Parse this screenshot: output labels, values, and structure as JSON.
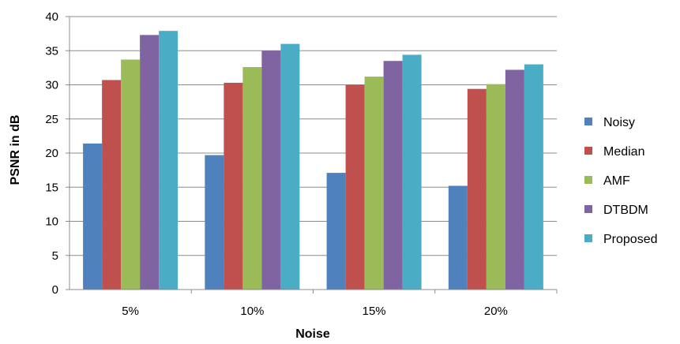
{
  "chart_data": {
    "type": "bar",
    "title": "",
    "xlabel": "Noise",
    "ylabel": "PSNR in dB",
    "categories": [
      "5%",
      "10%",
      "15%",
      "20%"
    ],
    "ylim": [
      0,
      40
    ],
    "yticks": [
      0,
      5,
      10,
      15,
      20,
      25,
      30,
      35,
      40
    ],
    "grid": true,
    "legend_position": "right",
    "series": [
      {
        "name": "Noisy",
        "color": "#4F81BD",
        "values": [
          21.4,
          19.7,
          17.1,
          15.2
        ]
      },
      {
        "name": "Median",
        "color": "#C0504D",
        "values": [
          30.7,
          30.3,
          30.0,
          29.4
        ]
      },
      {
        "name": "AMF",
        "color": "#9BBB59",
        "values": [
          33.7,
          32.6,
          31.2,
          30.1
        ]
      },
      {
        "name": "DTBDM",
        "color": "#8064A2",
        "values": [
          37.3,
          35.0,
          33.5,
          32.2
        ]
      },
      {
        "name": "Proposed",
        "color": "#4BACC6",
        "values": [
          37.9,
          36.0,
          34.4,
          33.0
        ]
      }
    ]
  }
}
